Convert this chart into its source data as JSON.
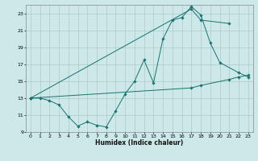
{
  "xlabel": "Humidex (Indice chaleur)",
  "bg_color": "#cde8e8",
  "grid_color": "#b0c8c8",
  "line_color": "#1a7070",
  "xlim": [
    -0.5,
    23.5
  ],
  "ylim": [
    9,
    24
  ],
  "xticks": [
    0,
    1,
    2,
    3,
    4,
    5,
    6,
    7,
    8,
    9,
    10,
    11,
    12,
    13,
    14,
    15,
    16,
    17,
    18,
    19,
    20,
    21,
    22,
    23
  ],
  "yticks": [
    9,
    11,
    13,
    15,
    17,
    19,
    21,
    23
  ],
  "line1_x": [
    0,
    1,
    2,
    3,
    4,
    5,
    6,
    7,
    8,
    9,
    10,
    11,
    12,
    13,
    14,
    15,
    16,
    17,
    18,
    19,
    20,
    22,
    23
  ],
  "line1_y": [
    13,
    13,
    12.7,
    12.2,
    10.8,
    9.7,
    10.2,
    9.8,
    9.6,
    11.5,
    13.5,
    15.0,
    17.5,
    14.8,
    20.0,
    22.2,
    22.5,
    23.8,
    22.8,
    19.5,
    17.2,
    16.0,
    15.5
  ],
  "line2_x": [
    0,
    17,
    18,
    21
  ],
  "line2_y": [
    13,
    23.5,
    22.2,
    21.8
  ],
  "line3_x": [
    0,
    17,
    18,
    21,
    22,
    23
  ],
  "line3_y": [
    13,
    14.2,
    14.5,
    15.2,
    15.5,
    15.7
  ]
}
